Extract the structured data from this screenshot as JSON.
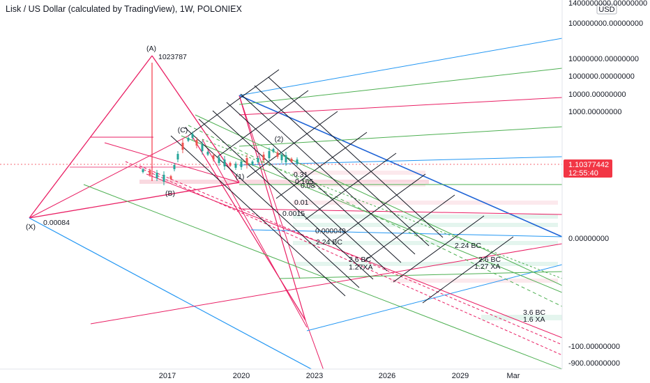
{
  "header": {
    "title": "Lisk / US Dollar (calculated by TradingView), 1W, POLONIEX"
  },
  "price_axis": {
    "currency": "USD"
  },
  "current_price": {
    "value": "1.10377442",
    "countdown": "12:55:40",
    "color": "#f23645"
  },
  "colors": {
    "pink": "#e91e63",
    "blue": "#2196f3",
    "dark_blue": "#1e63d6",
    "green": "#4caf50",
    "red": "#f23645",
    "black": "#131722",
    "candle_up": "#26a69a",
    "candle_down": "#ef5350"
  },
  "chart_data": {
    "type": "line",
    "symbol": "Lisk / US Dollar",
    "timeframe": "1W",
    "exchange": "POLONIEX",
    "x_ticks": [
      "2017",
      "2020",
      "2023",
      "2026",
      "2029",
      "Mar"
    ],
    "y_ticks": [
      "1400000000.00000000",
      "100000000.00000000",
      "10000000.00000000",
      "1000000.00000000",
      "10000.00000000",
      "1000.00000000",
      "0.00000000",
      "-100.00000000",
      "-900.00000000"
    ],
    "last_price": 1.10377442,
    "pattern_points": [
      {
        "label": "(X)",
        "value": "0.00084"
      },
      {
        "label": "(A)",
        "value": "1023787"
      },
      {
        "label": "(B)",
        "value": ""
      },
      {
        "label": "(C)",
        "value": ""
      }
    ],
    "wave_labels": [
      "(1)",
      "(2)"
    ],
    "annotations": [
      "0.31",
      "0.165",
      "0.08",
      "0.01",
      "0.0015",
      "0.000049",
      "2.24 BC",
      "2.6 BC",
      "1.27XA",
      "2.24 BC",
      "2.6 BC",
      "1.27 XA",
      "3.6 BC",
      "1.6 XA"
    ]
  }
}
